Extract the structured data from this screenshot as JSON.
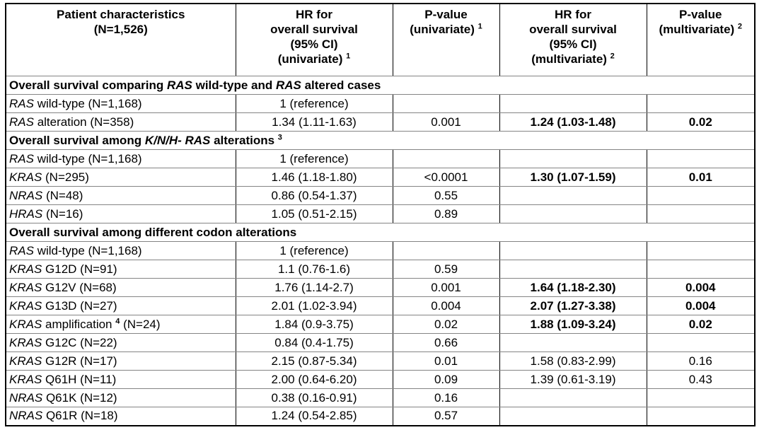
{
  "table": {
    "title": "RAS alterations and overall survival table",
    "header": {
      "cells": [
        {
          "name": "col-patient-characteristics",
          "lines": [
            [
              {
                "t": "Patient characteristics"
              }
            ],
            [
              {
                "t": "(N=1,526)"
              }
            ]
          ]
        },
        {
          "name": "col-hr-univariate",
          "lines": [
            [
              {
                "t": "HR for"
              }
            ],
            [
              {
                "t": "overall survival"
              }
            ],
            [
              {
                "t": "(95% CI)"
              }
            ],
            [
              {
                "t": "(univariate) "
              },
              {
                "t": "1",
                "sup": true
              }
            ]
          ]
        },
        {
          "name": "col-pvalue-univariate",
          "lines": [
            [
              {
                "t": "P-value"
              }
            ],
            [
              {
                "t": "(univariate) "
              },
              {
                "t": "1",
                "sup": true
              }
            ]
          ]
        },
        {
          "name": "col-hr-multivariate",
          "lines": [
            [
              {
                "t": "HR for"
              }
            ],
            [
              {
                "t": "overall survival"
              }
            ],
            [
              {
                "t": "(95% CI)"
              }
            ],
            [
              {
                "t": "(multivariate) "
              },
              {
                "t": "2",
                "sup": true
              }
            ]
          ]
        },
        {
          "name": "col-pvalue-multivariate",
          "lines": [
            [
              {
                "t": "P-value"
              }
            ],
            [
              {
                "t": "(multivariate) "
              },
              {
                "t": "2",
                "sup": true
              }
            ]
          ]
        }
      ]
    },
    "rows": [
      {
        "type": "section",
        "label": [
          {
            "t": "Overall survival comparing "
          },
          {
            "t": "RAS",
            "i": true
          },
          {
            "t": " wild-type and "
          },
          {
            "t": "RAS",
            "i": true
          },
          {
            "t": " altered cases"
          }
        ]
      },
      {
        "type": "data",
        "label": [
          {
            "t": "RAS",
            "i": true
          },
          {
            "t": " wild-type (N=1,168)"
          }
        ],
        "cells": [
          {
            "t": "1 (reference)"
          },
          {
            "t": ""
          },
          {
            "t": ""
          },
          {
            "t": ""
          }
        ]
      },
      {
        "type": "data",
        "label": [
          {
            "t": "RAS",
            "i": true
          },
          {
            "t": " alteration (N=358)"
          }
        ],
        "cells": [
          {
            "t": "1.34 (1.11-1.63)"
          },
          {
            "t": "0.001"
          },
          {
            "t": "1.24 (1.03-1.48)",
            "b": true
          },
          {
            "t": "0.02",
            "b": true
          }
        ]
      },
      {
        "type": "section",
        "label": [
          {
            "t": "Overall survival among "
          },
          {
            "t": "K/N/H- RAS",
            "i": true
          },
          {
            "t": " alterations "
          },
          {
            "t": "3",
            "sup": true
          }
        ]
      },
      {
        "type": "data",
        "label": [
          {
            "t": "RAS",
            "i": true
          },
          {
            "t": " wild-type (N=1,168)"
          }
        ],
        "cells": [
          {
            "t": "1 (reference)"
          },
          {
            "t": ""
          },
          {
            "t": ""
          },
          {
            "t": ""
          }
        ]
      },
      {
        "type": "data",
        "label": [
          {
            "t": "KRAS",
            "i": true
          },
          {
            "t": " (N=295)"
          }
        ],
        "cells": [
          {
            "t": "1.46 (1.18-1.80)"
          },
          {
            "t": "<0.0001"
          },
          {
            "t": "1.30 (1.07-1.59)",
            "b": true
          },
          {
            "t": "0.01",
            "b": true
          }
        ]
      },
      {
        "type": "data",
        "label": [
          {
            "t": "NRAS",
            "i": true
          },
          {
            "t": " (N=48)"
          }
        ],
        "cells": [
          {
            "t": "0.86 (0.54-1.37)"
          },
          {
            "t": "0.55"
          },
          {
            "t": ""
          },
          {
            "t": ""
          }
        ]
      },
      {
        "type": "data",
        "label": [
          {
            "t": "HRAS",
            "i": true
          },
          {
            "t": " (N=16)"
          }
        ],
        "cells": [
          {
            "t": "1.05 (0.51-2.15)"
          },
          {
            "t": "0.89"
          },
          {
            "t": ""
          },
          {
            "t": ""
          }
        ]
      },
      {
        "type": "section",
        "label": [
          {
            "t": "Overall survival among different codon alterations"
          }
        ]
      },
      {
        "type": "data",
        "label": [
          {
            "t": "RAS",
            "i": true
          },
          {
            "t": " wild-type (N=1,168)"
          }
        ],
        "cells": [
          {
            "t": "1 (reference)"
          },
          {
            "t": ""
          },
          {
            "t": ""
          },
          {
            "t": ""
          }
        ]
      },
      {
        "type": "data",
        "label": [
          {
            "t": "KRAS",
            "i": true
          },
          {
            "t": " G12D (N=91)"
          }
        ],
        "cells": [
          {
            "t": "1.1 (0.76-1.6)"
          },
          {
            "t": "0.59"
          },
          {
            "t": ""
          },
          {
            "t": ""
          }
        ]
      },
      {
        "type": "data",
        "label": [
          {
            "t": "KRAS",
            "i": true
          },
          {
            "t": " G12V (N=68)"
          }
        ],
        "cells": [
          {
            "t": "1.76 (1.14-2.7)"
          },
          {
            "t": "0.001"
          },
          {
            "t": "1.64 (1.18-2.30)",
            "b": true
          },
          {
            "t": "0.004",
            "b": true
          }
        ]
      },
      {
        "type": "data",
        "label": [
          {
            "t": "KRAS",
            "i": true
          },
          {
            "t": " G13D (N=27)"
          }
        ],
        "cells": [
          {
            "t": "2.01 (1.02-3.94)"
          },
          {
            "t": "0.004"
          },
          {
            "t": "2.07 (1.27-3.38)",
            "b": true
          },
          {
            "t": "0.004",
            "b": true
          }
        ]
      },
      {
        "type": "data",
        "label": [
          {
            "t": "KRAS",
            "i": true
          },
          {
            "t": " amplification "
          },
          {
            "t": "4",
            "sup": true
          },
          {
            "t": " (N=24)"
          }
        ],
        "cells": [
          {
            "t": "1.84 (0.9-3.75)"
          },
          {
            "t": "0.02"
          },
          {
            "t": "1.88 (1.09-3.24)",
            "b": true
          },
          {
            "t": "0.02",
            "b": true
          }
        ]
      },
      {
        "type": "data",
        "label": [
          {
            "t": "KRAS",
            "i": true
          },
          {
            "t": " G12C (N=22)"
          }
        ],
        "cells": [
          {
            "t": "0.84 (0.4-1.75)"
          },
          {
            "t": "0.66"
          },
          {
            "t": ""
          },
          {
            "t": ""
          }
        ]
      },
      {
        "type": "data",
        "label": [
          {
            "t": "KRAS",
            "i": true
          },
          {
            "t": " G12R (N=17)"
          }
        ],
        "cells": [
          {
            "t": "2.15 (0.87-5.34)"
          },
          {
            "t": "0.01"
          },
          {
            "t": "1.58 (0.83-2.99)"
          },
          {
            "t": "0.16"
          }
        ]
      },
      {
        "type": "data",
        "label": [
          {
            "t": "KRAS",
            "i": true
          },
          {
            "t": " Q61H (N=11)"
          }
        ],
        "cells": [
          {
            "t": "2.00 (0.64-6.20)"
          },
          {
            "t": "0.09"
          },
          {
            "t": "1.39 (0.61-3.19)"
          },
          {
            "t": "0.43"
          }
        ]
      },
      {
        "type": "data",
        "label": [
          {
            "t": "NRAS",
            "i": true
          },
          {
            "t": " Q61K (N=12)"
          }
        ],
        "cells": [
          {
            "t": "0.38 (0.16-0.91)"
          },
          {
            "t": "0.16"
          },
          {
            "t": ""
          },
          {
            "t": ""
          }
        ]
      },
      {
        "type": "data",
        "label": [
          {
            "t": "NRAS",
            "i": true
          },
          {
            "t": " Q61R (N=18)"
          }
        ],
        "cells": [
          {
            "t": "1.24 (0.54-2.85)"
          },
          {
            "t": "0.57"
          },
          {
            "t": ""
          },
          {
            "t": ""
          }
        ]
      }
    ]
  }
}
